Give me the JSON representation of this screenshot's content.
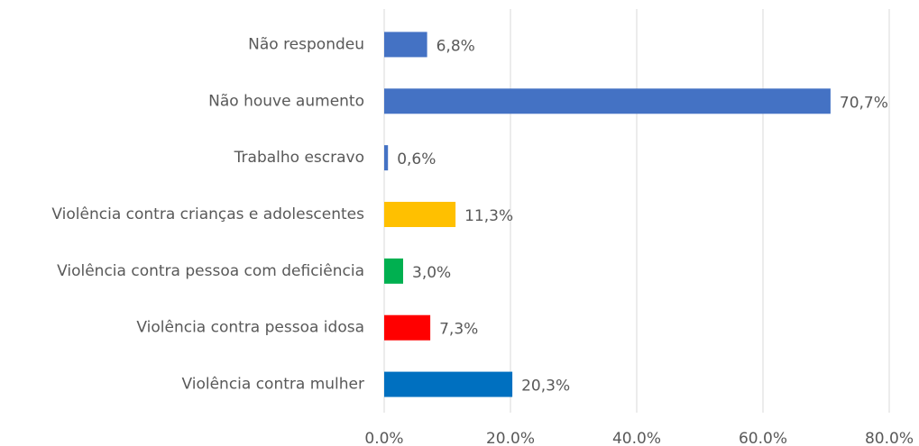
{
  "chart_data": {
    "type": "bar",
    "orientation": "horizontal",
    "categories": [
      "Não respondeu",
      "Não houve aumento",
      "Trabalho escravo",
      "Violência contra crianças e adolescentes",
      "Violência contra pessoa com deficiência",
      "Violência contra pessoa idosa",
      "Violência contra mulher"
    ],
    "values": [
      6.8,
      70.7,
      0.6,
      11.3,
      3.0,
      7.3,
      20.3
    ],
    "value_labels": [
      "6,8%",
      "70,7%",
      "0,6%",
      "11,3%",
      "3,0%",
      "7,3%",
      "20,3%"
    ],
    "colors": [
      "#4472c4",
      "#4472c4",
      "#4472c4",
      "#ffc000",
      "#00b050",
      "#ff0000",
      "#0070c0"
    ],
    "xlim": [
      0,
      80
    ],
    "xticks": [
      {
        "value": 0,
        "label": "0.0%"
      },
      {
        "value": 20,
        "label": "20.0%"
      },
      {
        "value": 40,
        "label": "40.0%"
      },
      {
        "value": 60,
        "label": "60.0%"
      },
      {
        "value": 80,
        "label": "80.0%"
      }
    ],
    "grid": true
  }
}
